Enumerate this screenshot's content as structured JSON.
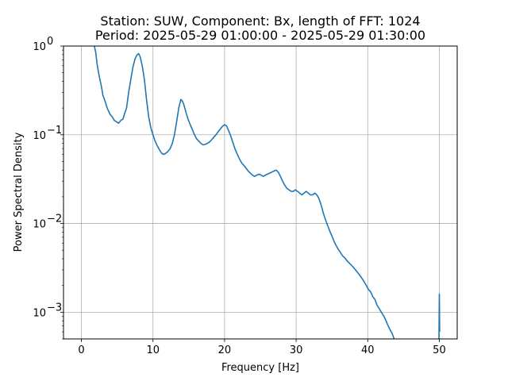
{
  "chart_data": {
    "type": "line",
    "title": "Station: SUW, Component: Bx, length of FFT: 1024",
    "subtitle": "Period: 2025-05-29 01:00:00 - 2025-05-29 01:30:00",
    "xlabel": "Frequency [Hz]",
    "ylabel": "Power Spectral Density",
    "xlim": [
      -2.5,
      52.5
    ],
    "ylim": [
      0.0005,
      1.0
    ],
    "yscale": "log",
    "grid": true,
    "x_ticks": [
      0,
      10,
      20,
      30,
      40,
      50
    ],
    "x_tick_labels": [
      "0",
      "10",
      "20",
      "30",
      "40",
      "50"
    ],
    "y_ticks": [
      0.001,
      0.01,
      0.1,
      1.0
    ],
    "y_tick_labels": [
      "10",
      "10",
      "10",
      "10"
    ],
    "y_tick_exponents": [
      "−3",
      "−2",
      "−1",
      "0"
    ],
    "line_color": "#1f77b4",
    "series": [
      {
        "x": [
          1.8,
          2.0,
          2.2,
          2.5,
          2.8,
          3.0,
          3.3,
          3.6,
          4.0,
          4.3,
          4.6,
          4.9,
          5.2,
          5.5,
          5.8,
          6.0,
          6.3,
          6.6,
          6.9,
          7.2,
          7.5,
          7.8,
          8.0,
          8.2,
          8.5,
          8.8,
          9.1,
          9.4,
          9.7,
          10.0,
          10.3,
          10.6,
          10.9,
          11.2,
          11.5,
          11.8,
          12.1,
          12.4,
          12.7,
          13.0,
          13.3,
          13.6,
          13.9,
          14.1,
          14.3,
          14.6,
          14.9,
          15.2,
          15.5,
          15.8,
          16.1,
          16.4,
          16.7,
          17.0,
          17.3,
          17.6,
          17.9,
          18.2,
          18.5,
          18.8,
          19.1,
          19.4,
          19.7,
          20.0,
          20.3,
          20.6,
          20.9,
          21.2,
          21.5,
          21.8,
          22.1,
          22.4,
          22.7,
          23.0,
          23.3,
          23.6,
          23.9,
          24.2,
          24.5,
          24.8,
          25.1,
          25.4,
          25.7,
          26.0,
          26.3,
          26.6,
          26.9,
          27.2,
          27.5,
          27.8,
          28.1,
          28.4,
          28.7,
          29.0,
          29.3,
          29.6,
          29.9,
          30.2,
          30.5,
          30.8,
          31.1,
          31.4,
          31.7,
          32.0,
          32.3,
          32.6,
          32.9,
          33.2,
          33.5,
          33.8,
          34.1,
          34.4,
          34.7,
          35.0,
          35.3,
          35.6,
          35.9,
          36.2,
          36.5,
          36.8,
          37.1,
          37.4,
          37.7,
          38.0,
          38.3,
          38.6,
          38.9,
          39.2,
          39.5,
          39.8,
          40.1,
          40.4,
          40.7,
          41.0,
          41.3,
          41.6,
          41.9,
          42.2,
          42.5,
          42.8,
          43.1,
          43.4,
          43.7
        ],
        "y": [
          1.0,
          0.85,
          0.62,
          0.45,
          0.35,
          0.28,
          0.24,
          0.2,
          0.17,
          0.16,
          0.145,
          0.14,
          0.135,
          0.145,
          0.15,
          0.17,
          0.2,
          0.3,
          0.42,
          0.58,
          0.72,
          0.8,
          0.82,
          0.76,
          0.6,
          0.42,
          0.25,
          0.16,
          0.12,
          0.1,
          0.085,
          0.075,
          0.068,
          0.062,
          0.06,
          0.062,
          0.065,
          0.07,
          0.08,
          0.1,
          0.14,
          0.2,
          0.25,
          0.24,
          0.22,
          0.18,
          0.15,
          0.13,
          0.115,
          0.1,
          0.09,
          0.085,
          0.08,
          0.077,
          0.078,
          0.08,
          0.083,
          0.088,
          0.094,
          0.1,
          0.108,
          0.116,
          0.124,
          0.13,
          0.125,
          0.11,
          0.095,
          0.08,
          0.068,
          0.06,
          0.053,
          0.048,
          0.045,
          0.042,
          0.039,
          0.037,
          0.035,
          0.034,
          0.035,
          0.036,
          0.035,
          0.034,
          0.035,
          0.036,
          0.037,
          0.038,
          0.039,
          0.04,
          0.038,
          0.034,
          0.03,
          0.027,
          0.025,
          0.024,
          0.023,
          0.023,
          0.024,
          0.023,
          0.022,
          0.021,
          0.022,
          0.023,
          0.022,
          0.021,
          0.021,
          0.022,
          0.021,
          0.019,
          0.016,
          0.013,
          0.011,
          0.0095,
          0.0082,
          0.0072,
          0.0063,
          0.0056,
          0.0051,
          0.0047,
          0.0043,
          0.0041,
          0.0038,
          0.0036,
          0.0034,
          0.0032,
          0.003,
          0.0028,
          0.0026,
          0.0024,
          0.0022,
          0.002,
          0.0018,
          0.0017,
          0.0015,
          0.0014,
          0.0012,
          0.0011,
          0.001,
          0.00092,
          0.00082,
          0.00072,
          0.00064,
          0.00058,
          0.0005
        ]
      },
      {
        "x": [
          49.95,
          50.0,
          50.05
        ],
        "y": [
          0.0005,
          0.0016,
          0.0006
        ]
      }
    ]
  }
}
